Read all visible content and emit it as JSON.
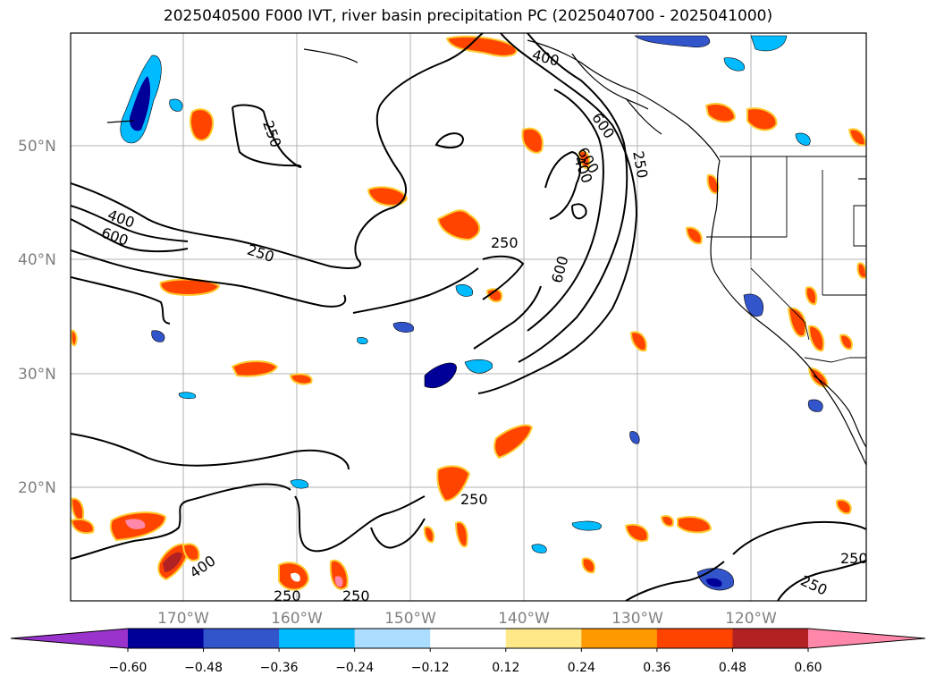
{
  "title": "2025040500 F000 IVT, river basin precipitation PC (2025040700 - 2025041000)",
  "lat_labels": [
    "50°N",
    "40°N",
    "30°N",
    "20°N"
  ],
  "lon_labels": [
    "170°W",
    "160°W",
    "150°W",
    "140°W",
    "130°W",
    "120°W"
  ],
  "colorbar": {
    "colors": [
      "#9933cc",
      "#000099",
      "#3355cc",
      "#00bbff",
      "#aaddff",
      "#ffffff",
      "#ffe888",
      "#ff9900",
      "#ff4400",
      "#b22222",
      "#ff88aa"
    ],
    "labels": [
      "−0.60",
      "−0.48",
      "−0.36",
      "−0.24",
      "−0.12",
      "0.12",
      "0.24",
      "0.36",
      "0.48",
      "0.60"
    ]
  },
  "contour_labels": [
    "250",
    "400",
    "600",
    "250",
    "250",
    "600",
    "250",
    "600",
    "400",
    "400",
    "600",
    "250",
    "250",
    "400",
    "250",
    "250",
    "250"
  ]
}
